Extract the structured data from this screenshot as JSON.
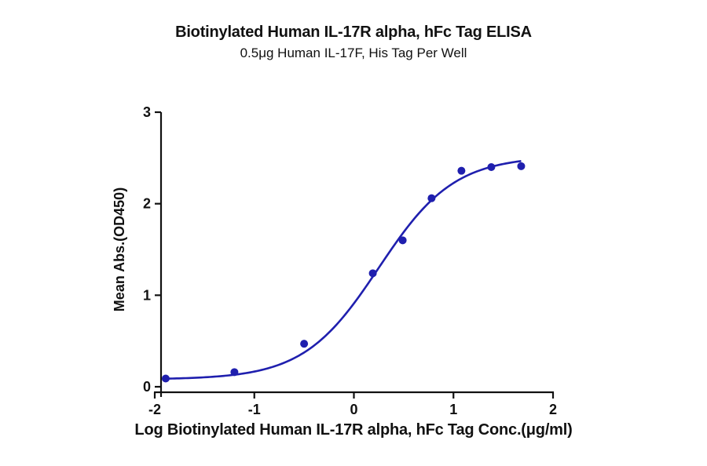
{
  "chart_data": {
    "type": "scatter",
    "title": "Biotinylated Human IL-17R alpha, hFc Tag ELISA",
    "subtitle": "0.5μg Human IL-17F, His Tag Per Well",
    "xlabel": "Log Biotinylated Human IL-17R alpha, hFc Tag Conc.(μg/ml)",
    "ylabel": "Mean Abs.(OD450)",
    "xlim": [
      -2,
      2
    ],
    "ylim": [
      0,
      3
    ],
    "xticks": [
      -2,
      -1,
      0,
      1,
      2
    ],
    "yticks": [
      0,
      1,
      2,
      3
    ],
    "grid": false,
    "legend": null,
    "series": [
      {
        "name": "Biotinylated Human IL-17R alpha, hFc Tag",
        "color": "#1f1fae",
        "marker": "circle",
        "x": [
          -1.89,
          -1.2,
          -0.5,
          0.19,
          0.49,
          0.78,
          1.08,
          1.38,
          1.68
        ],
        "y": [
          0.09,
          0.16,
          0.47,
          1.24,
          1.6,
          2.06,
          2.36,
          2.4,
          2.41
        ]
      }
    ],
    "fit_curve": {
      "model": "4PL (sigmoidal dose-response)",
      "color": "#1f1fae",
      "bottom": 0.08,
      "top": 2.52,
      "log_ec50": 0.25,
      "hill_slope": 1.15,
      "x_range": [
        -1.89,
        1.68
      ]
    }
  }
}
